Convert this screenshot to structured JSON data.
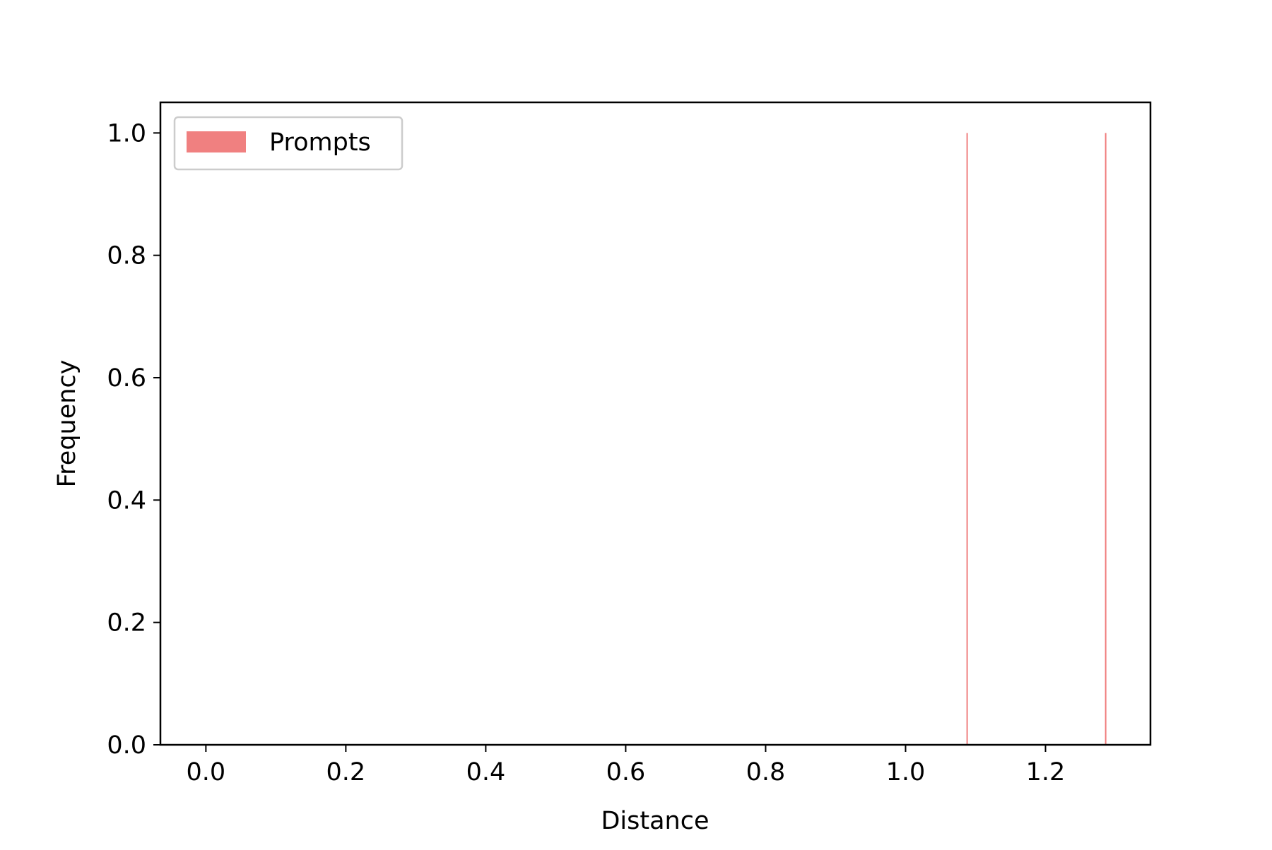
{
  "chart_data": {
    "type": "bar",
    "title": "",
    "xlabel": "Distance",
    "ylabel": "Frequency",
    "xlim": [
      -0.065,
      1.35
    ],
    "ylim": [
      0.0,
      1.05
    ],
    "xticks": [
      0.0,
      0.2,
      0.4,
      0.6,
      0.8,
      1.0,
      1.2
    ],
    "xtick_labels": [
      "0.0",
      "0.2",
      "0.4",
      "0.6",
      "0.8",
      "1.0",
      "1.2"
    ],
    "yticks": [
      0.0,
      0.2,
      0.4,
      0.6,
      0.8,
      1.0
    ],
    "ytick_labels": [
      "0.0",
      "0.2",
      "0.4",
      "0.6",
      "0.8",
      "1.0"
    ],
    "grid": false,
    "legend_position": "upper-left",
    "series": [
      {
        "name": "Prompts",
        "color": "#f08080",
        "bars": [
          {
            "x": 1.088,
            "value": 1.0
          },
          {
            "x": 1.286,
            "value": 1.0
          }
        ]
      }
    ]
  }
}
